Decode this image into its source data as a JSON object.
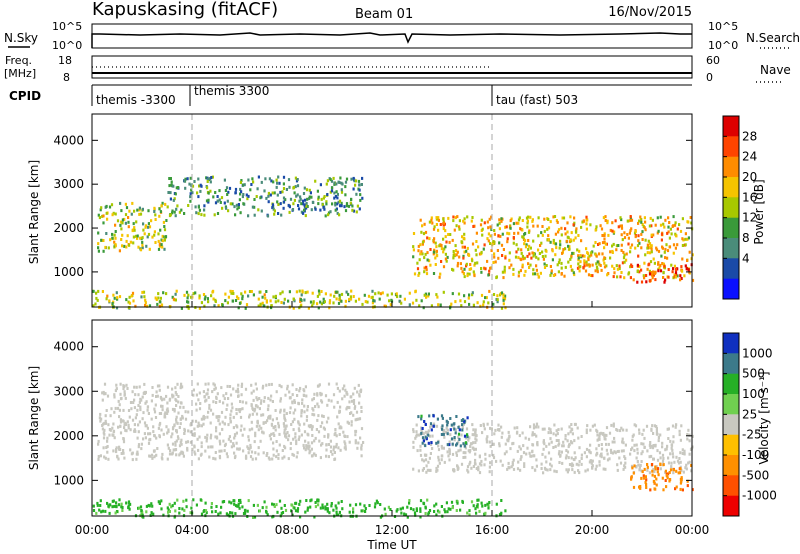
{
  "header": {
    "station": "Kapuskasing (fitACF)",
    "beam": "Beam 01",
    "date": "16/Nov/2015"
  },
  "strips": {
    "nsky": {
      "label": "N.Sky",
      "ticks": [
        "10^5",
        "10^0"
      ]
    },
    "nsearch": {
      "label": "N.Search",
      "ticks": [
        "10^5",
        "10^0"
      ]
    },
    "freq": {
      "label_line1": "Freq.",
      "label_line2": "[MHz]",
      "ticks": [
        "18",
        "8"
      ]
    },
    "nave": {
      "label": "Nave",
      "ticks": [
        "60",
        "0"
      ]
    },
    "cpid": {
      "label": "CPID",
      "segments": [
        "themis -3300",
        "themis 3300",
        "tau (fast) 503"
      ]
    }
  },
  "chart_data": [
    {
      "type": "heatmap",
      "panel": "power",
      "title": "",
      "xlabel": "",
      "ylabel": "Slant Range [km]",
      "xlim": [
        0,
        24
      ],
      "ylim": [
        200,
        4600
      ],
      "yticks": [
        "1000",
        "2000",
        "3000",
        "4000"
      ],
      "colorbar": {
        "label": "Power [dB]",
        "ticks": [
          "28",
          "24",
          "20",
          "16",
          "12",
          "8",
          "4"
        ],
        "colors": [
          "#dd0000",
          "#ff4400",
          "#ff8c00",
          "#f5c400",
          "#a8c800",
          "#3a9a3a",
          "#4a8c7a",
          "#1a4aa8",
          "#0a10ff"
        ]
      },
      "echo_regions": [
        {
          "t": [
            0.2,
            3.0
          ],
          "range_km": [
            1500,
            2600
          ],
          "level_db": 16
        },
        {
          "t": [
            3.0,
            10.8
          ],
          "range_km": [
            2300,
            3200
          ],
          "level_db": 10
        },
        {
          "t": [
            12.8,
            24.0
          ],
          "range_km": [
            900,
            2300
          ],
          "level_db": 20
        },
        {
          "t": [
            21.5,
            24.0
          ],
          "range_km": [
            800,
            1200
          ],
          "level_db": 28
        },
        {
          "t": [
            0.0,
            16.5
          ],
          "range_km": [
            200,
            600
          ],
          "level_db": 16
        }
      ]
    },
    {
      "type": "heatmap",
      "panel": "velocity",
      "title": "",
      "xlabel": "Time UT",
      "ylabel": "Slant Range [km]",
      "xlim": [
        0,
        24
      ],
      "ylim": [
        200,
        4600
      ],
      "xticks": [
        "00:00",
        "04:00",
        "08:00",
        "12:00",
        "16:00",
        "20:00",
        "00:00"
      ],
      "yticks": [
        "1000",
        "2000",
        "3000",
        "4000"
      ],
      "colorbar": {
        "label": "Velocity [m s⁻¹]",
        "ticks": [
          "1000",
          "500",
          "100",
          "25",
          "-25",
          "-100",
          "-500",
          "-1000"
        ],
        "colors": [
          "#1030c0",
          "#3c7a8a",
          "#26b026",
          "#70d050",
          "#c8c8c0",
          "#ffc000",
          "#ff9000",
          "#ff5000",
          "#ee0000"
        ]
      },
      "echo_regions": [
        {
          "t": [
            0.2,
            10.8
          ],
          "range_km": [
            1500,
            3200
          ],
          "velocity_ms": 0
        },
        {
          "t": [
            12.8,
            24.0
          ],
          "range_km": [
            1200,
            2300
          ],
          "velocity_ms": 0
        },
        {
          "t": [
            13.0,
            15.0
          ],
          "range_km": [
            1800,
            2500
          ],
          "velocity_ms": 800
        },
        {
          "t": [
            21.5,
            24.0
          ],
          "range_km": [
            800,
            1400
          ],
          "velocity_ms": -400
        },
        {
          "t": [
            0.0,
            16.5
          ],
          "range_km": [
            200,
            600
          ],
          "velocity_ms": 150
        }
      ]
    }
  ]
}
